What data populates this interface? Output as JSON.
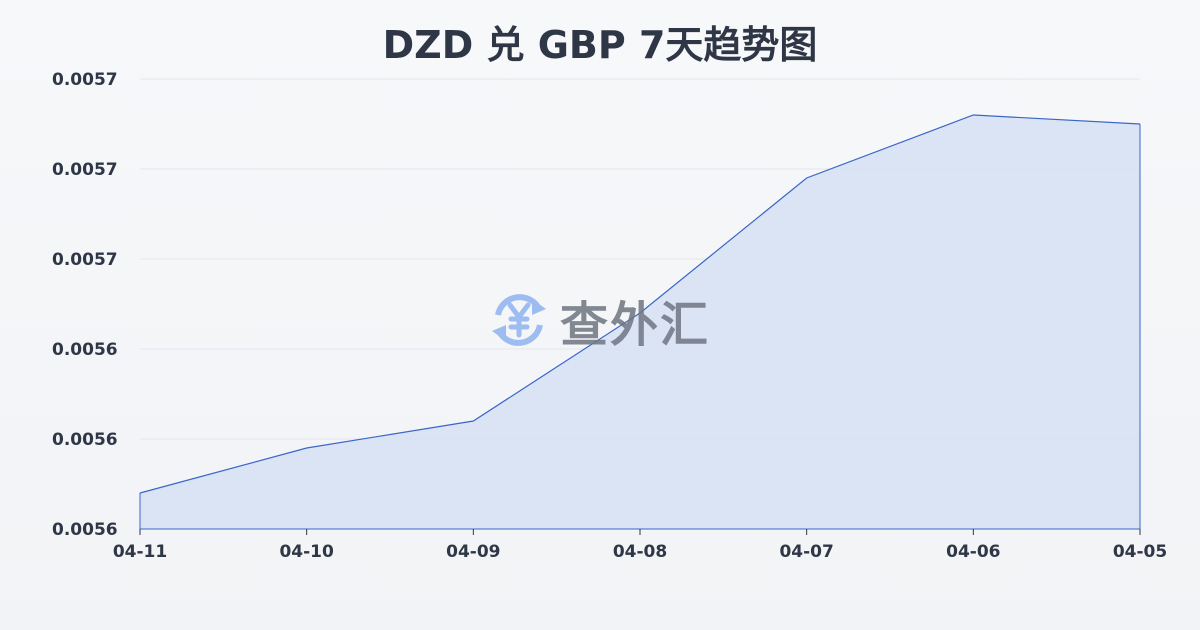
{
  "chart_data": {
    "type": "area",
    "title": "DZD 兑 GBP 7天趋势图",
    "categories": [
      "04-11",
      "04-10",
      "04-09",
      "04-08",
      "04-07",
      "04-06",
      "04-05"
    ],
    "values": [
      0.005624,
      0.005629,
      0.005632,
      0.005644,
      0.005659,
      0.005666,
      0.005665
    ],
    "ylim": [
      0.00562,
      0.00567
    ],
    "y_tick_labels": [
      "0.0056",
      "0.0056",
      "0.0056",
      "0.0057",
      "0.0057",
      "0.0057"
    ],
    "xlabel": "",
    "ylabel": "",
    "grid": true,
    "line_color": "#3a66c8",
    "fill_color": "#d6e0f5"
  },
  "watermark": {
    "text": "查外汇",
    "icon": "yen-exchange-icon",
    "color": "#8fb3f0"
  }
}
